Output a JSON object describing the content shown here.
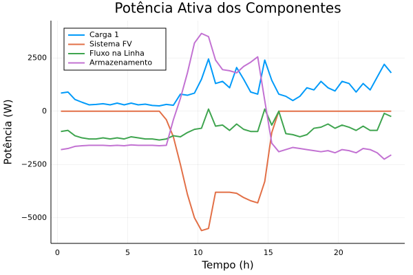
{
  "chart_data": {
    "type": "line",
    "title": "Potência Ativa dos Componentes",
    "x_label": "Tempo (h)",
    "y_label": "Potência (W)",
    "x": [
      0.25,
      0.75,
      1.25,
      1.75,
      2.25,
      2.75,
      3.25,
      3.75,
      4.25,
      4.75,
      5.25,
      5.75,
      6.25,
      6.75,
      7.25,
      7.75,
      8.25,
      8.75,
      9.25,
      9.75,
      10.25,
      10.75,
      11.25,
      11.75,
      12.25,
      12.75,
      13.25,
      13.75,
      14.25,
      14.75,
      15.25,
      15.75,
      16.25,
      16.75,
      17.25,
      17.75,
      18.25,
      18.75,
      19.25,
      19.75,
      20.25,
      20.75,
      21.25,
      21.75,
      22.25,
      22.75,
      23.25,
      23.75
    ],
    "series": [
      {
        "name": "Carga 1",
        "color": "#009af9",
        "values": [
          850,
          900,
          550,
          420,
          300,
          320,
          350,
          300,
          380,
          300,
          380,
          300,
          330,
          270,
          250,
          320,
          280,
          800,
          750,
          850,
          1500,
          2450,
          1300,
          1400,
          1100,
          2050,
          1500,
          900,
          800,
          2400,
          1450,
          800,
          700,
          500,
          700,
          1100,
          1000,
          1400,
          1100,
          950,
          1400,
          1300,
          900,
          1300,
          1000,
          1600,
          2200,
          1800
        ]
      },
      {
        "name": "Sistema FV",
        "color": "#e26f46",
        "values": [
          0,
          0,
          0,
          0,
          0,
          0,
          0,
          0,
          0,
          0,
          0,
          0,
          0,
          0,
          0,
          -400,
          -1200,
          -2500,
          -3900,
          -5000,
          -5600,
          -5500,
          -3800,
          -3800,
          -3800,
          -3850,
          -4050,
          -4200,
          -4300,
          -3300,
          -1000,
          0,
          0,
          0,
          0,
          0,
          0,
          0,
          0,
          0,
          0,
          0,
          0,
          0,
          0,
          0,
          0,
          0
        ]
      },
      {
        "name": "Fluxo na Linha",
        "color": "#3ea44e",
        "values": [
          -950,
          -900,
          -1150,
          -1250,
          -1300,
          -1300,
          -1250,
          -1300,
          -1250,
          -1300,
          -1200,
          -1250,
          -1300,
          -1300,
          -1350,
          -1300,
          -1150,
          -1200,
          -1000,
          -850,
          -800,
          100,
          -700,
          -650,
          -900,
          -600,
          -850,
          -950,
          -950,
          100,
          -650,
          0,
          -1050,
          -1100,
          -1200,
          -1100,
          -800,
          -750,
          -600,
          -800,
          -650,
          -750,
          -900,
          -700,
          -900,
          -900,
          -100,
          -250
        ]
      },
      {
        "name": "Armazenamento",
        "color": "#c271d2",
        "values": [
          -1800,
          -1750,
          -1650,
          -1620,
          -1600,
          -1600,
          -1600,
          -1620,
          -1600,
          -1620,
          -1580,
          -1600,
          -1600,
          -1600,
          -1620,
          -1600,
          -400,
          600,
          1800,
          3200,
          3650,
          3500,
          2400,
          1950,
          1900,
          1800,
          2100,
          2300,
          2550,
          500,
          -1500,
          -1900,
          -1800,
          -1700,
          -1750,
          -1800,
          -1850,
          -1900,
          -1850,
          -1950,
          -1800,
          -1850,
          -1950,
          -1750,
          -1800,
          -1950,
          -2250,
          -2050
        ]
      }
    ],
    "xlim": [
      -0.46,
      24.71
    ],
    "ylim": [
      -6200,
      4250
    ],
    "xticks": [
      0,
      5,
      10,
      15,
      20
    ],
    "yticks": [
      {
        "value": -5000,
        "label": "−5000"
      },
      {
        "value": -2500,
        "label": "−2500"
      },
      0,
      2500
    ],
    "grid": true,
    "legend": "top-left"
  }
}
